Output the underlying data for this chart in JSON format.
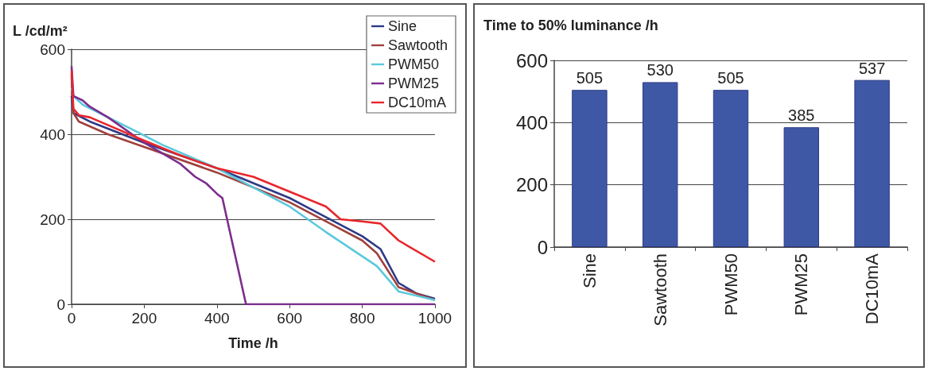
{
  "chart_data": [
    {
      "type": "line",
      "xlabel": "Time /h",
      "ylabel": "L /cd/m²",
      "xlim": [
        0,
        1000
      ],
      "xticks": [
        0,
        200,
        400,
        600,
        800,
        1000
      ],
      "ylim": [
        0,
        600
      ],
      "yticks": [
        0,
        200,
        400,
        600
      ],
      "grid": "y",
      "legend": "top right",
      "marker": "none",
      "line_style": "solid",
      "series": [
        {
          "name": "Sine",
          "color": "#2e3a87",
          "x": [
            0,
            5,
            50,
            200,
            400,
            600,
            700,
            800,
            850,
            900,
            950,
            1000
          ],
          "values": [
            490,
            450,
            430,
            380,
            320,
            250,
            205,
            160,
            130,
            50,
            25,
            13
          ]
        },
        {
          "name": "Sawtooth",
          "color": "#a0413c",
          "x": [
            0,
            5,
            20,
            100,
            200,
            400,
            600,
            700,
            800,
            840,
            900,
            1000
          ],
          "values": [
            540,
            450,
            430,
            400,
            370,
            310,
            240,
            195,
            150,
            120,
            40,
            10
          ]
        },
        {
          "name": "PWM50",
          "color": "#5bc8dc",
          "x": [
            0,
            5,
            30,
            100,
            170,
            250,
            400,
            600,
            700,
            840,
            900,
            1000
          ],
          "values": [
            510,
            490,
            470,
            440,
            410,
            375,
            320,
            230,
            170,
            90,
            30,
            10
          ]
        },
        {
          "name": "PWM25",
          "color": "#7b2d8e",
          "x": [
            0,
            5,
            30,
            50,
            100,
            200,
            300,
            340,
            370,
            400,
            415,
            480,
            1000
          ],
          "values": [
            560,
            490,
            480,
            465,
            440,
            380,
            330,
            300,
            285,
            260,
            250,
            0,
            0
          ]
        },
        {
          "name": "DC10mA",
          "color": "#e8262c",
          "x": [
            0,
            5,
            20,
            50,
            200,
            300,
            400,
            500,
            600,
            700,
            740,
            800,
            850,
            900,
            1000
          ],
          "values": [
            550,
            460,
            445,
            440,
            385,
            350,
            320,
            300,
            265,
            230,
            200,
            195,
            190,
            150,
            100
          ]
        }
      ]
    },
    {
      "type": "bar",
      "title": "Time to 50% luminance /h",
      "categories": [
        "Sine",
        "Sawtooth",
        "PWM50",
        "PWM25",
        "DC10mA"
      ],
      "values": [
        505,
        530,
        505,
        385,
        537
      ],
      "color": "#3f58a6",
      "ylim": [
        0,
        600
      ],
      "yticks": [
        0,
        200,
        400,
        600
      ],
      "grid": "y",
      "data_labels": true
    }
  ]
}
